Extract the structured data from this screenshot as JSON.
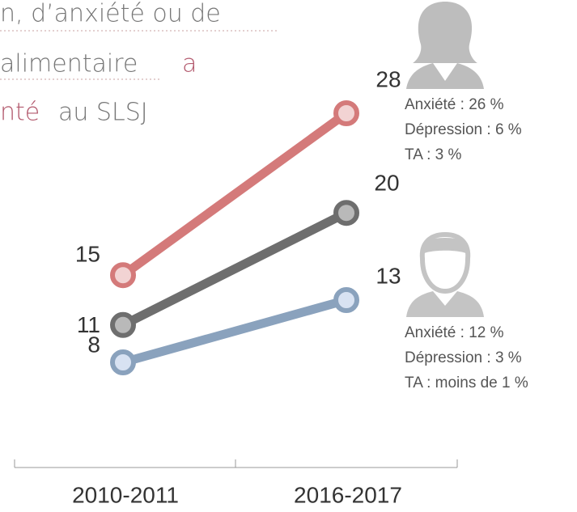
{
  "chart_data": {
    "type": "line",
    "title_lines": [
      [
        "n, d’anxiété ou de"
      ],
      [
        "alimentaire",
        "a"
      ],
      [
        "nté",
        "au SLSJ"
      ]
    ],
    "categories": [
      "2010-2011",
      "2016-2017"
    ],
    "series": [
      {
        "color": "#d47a7a",
        "marker_fill": "#f2d3d3",
        "values": [
          15,
          28
        ]
      },
      {
        "color": "#6e6e6e",
        "marker_fill": "#b9b9b9",
        "values": [
          11,
          20
        ]
      },
      {
        "color": "#8aa2bd",
        "marker_fill": "#d8e2f2",
        "values": [
          8,
          13
        ]
      }
    ],
    "annotations": [
      [
        "Anxiété : 26 %",
        "Dépression : 6 %",
        "TA : 3 %"
      ],
      [
        "Anxiété : 12 %",
        "Dépression : 3 %",
        "TA : moins de 1 %"
      ]
    ]
  }
}
